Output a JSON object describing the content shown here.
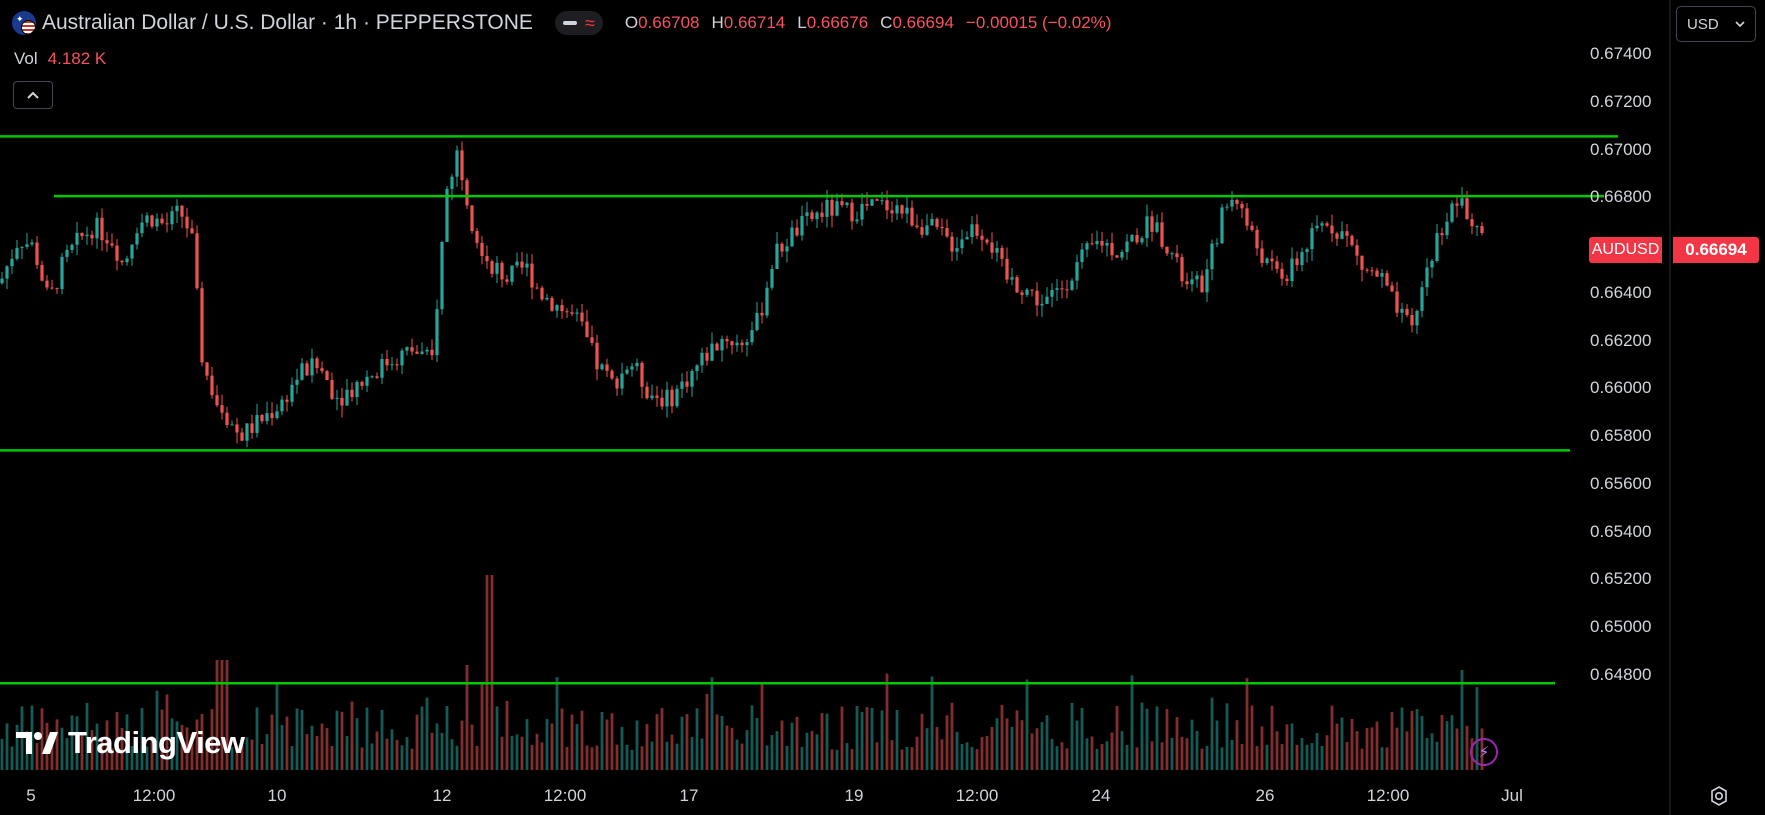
{
  "header": {
    "title": "Australian Dollar / U.S. Dollar · 1h · PEPPERSTONE",
    "ohlc": [
      {
        "k": "O",
        "v": "0.66708"
      },
      {
        "k": "H",
        "v": "0.66714"
      },
      {
        "k": "L",
        "v": "0.66676"
      },
      {
        "k": "C",
        "v": "0.66694"
      }
    ],
    "change": "−0.00015 (−0.02%)"
  },
  "volume": {
    "label": "Vol",
    "value": "4.182 K"
  },
  "currency_selector": {
    "value": "USD"
  },
  "last_price": {
    "symbol": "AUDUSD",
    "value": "0.66694"
  },
  "logo_text": "TradingView",
  "colors": {
    "up": "#26a69a",
    "down": "#ef5350",
    "level": "#00c800",
    "tag": "#f23645",
    "background": "#000000"
  },
  "chart_data": {
    "type": "candlestick",
    "symbol": "AUDUSD",
    "interval": "1h",
    "y_axis": {
      "ticks": [
        "0.67400",
        "0.67200",
        "0.67000",
        "0.66800",
        "0.66600",
        "0.66400",
        "0.66200",
        "0.66000",
        "0.65800",
        "0.65600",
        "0.65400",
        "0.65200",
        "0.65000",
        "0.64800"
      ],
      "range": [
        0.6475,
        0.675
      ]
    },
    "x_axis": {
      "ticks": [
        {
          "label": "5",
          "t": 0
        },
        {
          "label": "12:00",
          "t": 1
        },
        {
          "label": "10",
          "t": 2
        },
        {
          "label": "12",
          "t": 3
        },
        {
          "label": "12:00",
          "t": 4
        },
        {
          "label": "17",
          "t": 5
        },
        {
          "label": "19",
          "t": 6
        },
        {
          "label": "12:00",
          "t": 7
        },
        {
          "label": "24",
          "t": 8
        },
        {
          "label": "26",
          "t": 9
        },
        {
          "label": "12:00",
          "t": 10
        },
        {
          "label": "Jul",
          "t": 11
        }
      ]
    },
    "levels": [
      0.67055,
      0.66805,
      0.6574,
      0.64765
    ],
    "close_path": [
      [
        0.0,
        0.6644
      ],
      [
        0.5,
        0.6663
      ],
      [
        0.9,
        0.6659
      ],
      [
        1.3,
        0.6636
      ],
      [
        1.7,
        0.6653
      ],
      [
        2.1,
        0.6662
      ],
      [
        2.5,
        0.6668
      ],
      [
        3.0,
        0.6662
      ],
      [
        3.3,
        0.6651
      ],
      [
        3.6,
        0.6668
      ],
      [
        4.0,
        0.6672
      ],
      [
        4.4,
        0.6668
      ],
      [
        4.8,
        0.6674
      ],
      [
        5.1,
        0.6664
      ],
      [
        5.4,
        0.661
      ],
      [
        5.8,
        0.6593
      ],
      [
        6.4,
        0.658
      ],
      [
        6.9,
        0.6586
      ],
      [
        7.5,
        0.6594
      ],
      [
        8.0,
        0.6607
      ],
      [
        8.5,
        0.6609
      ],
      [
        9.0,
        0.6596
      ],
      [
        9.7,
        0.6604
      ],
      [
        10.4,
        0.6612
      ],
      [
        11.0,
        0.6616
      ],
      [
        11.5,
        0.6611
      ],
      [
        11.9,
        0.6683
      ],
      [
        12.2,
        0.67
      ],
      [
        12.6,
        0.6668
      ],
      [
        13.0,
        0.6654
      ],
      [
        13.5,
        0.6646
      ],
      [
        14.0,
        0.6651
      ],
      [
        14.4,
        0.664
      ],
      [
        14.9,
        0.6634
      ],
      [
        15.4,
        0.6628
      ],
      [
        15.9,
        0.661
      ],
      [
        16.3,
        0.6602
      ],
      [
        16.8,
        0.6611
      ],
      [
        17.3,
        0.6598
      ],
      [
        17.8,
        0.6595
      ],
      [
        18.3,
        0.6604
      ],
      [
        18.8,
        0.6614
      ],
      [
        19.3,
        0.6622
      ],
      [
        19.7,
        0.6618
      ],
      [
        20.2,
        0.6628
      ],
      [
        20.6,
        0.6655
      ],
      [
        21.0,
        0.6663
      ],
      [
        21.5,
        0.667
      ],
      [
        22.0,
        0.6675
      ],
      [
        22.6,
        0.6674
      ],
      [
        23.2,
        0.6676
      ],
      [
        23.8,
        0.6677
      ],
      [
        24.4,
        0.667
      ],
      [
        24.9,
        0.6666
      ],
      [
        25.4,
        0.666
      ],
      [
        25.9,
        0.6668
      ],
      [
        26.3,
        0.6664
      ],
      [
        26.8,
        0.6646
      ],
      [
        27.3,
        0.6642
      ],
      [
        27.8,
        0.6635
      ],
      [
        28.3,
        0.6643
      ],
      [
        28.8,
        0.6654
      ],
      [
        29.3,
        0.6662
      ],
      [
        29.8,
        0.6657
      ],
      [
        30.2,
        0.6663
      ],
      [
        30.7,
        0.667
      ],
      [
        31.1,
        0.666
      ],
      [
        31.6,
        0.6642
      ],
      [
        32.1,
        0.6644
      ],
      [
        32.5,
        0.6671
      ],
      [
        32.9,
        0.6682
      ],
      [
        33.3,
        0.6665
      ],
      [
        33.8,
        0.665
      ],
      [
        34.3,
        0.6647
      ],
      [
        34.8,
        0.666
      ],
      [
        35.3,
        0.667
      ],
      [
        35.8,
        0.6665
      ],
      [
        36.3,
        0.665
      ],
      [
        36.8,
        0.6646
      ],
      [
        37.2,
        0.6632
      ],
      [
        37.6,
        0.6624
      ],
      [
        38.0,
        0.665
      ],
      [
        38.4,
        0.6668
      ],
      [
        38.8,
        0.6678
      ],
      [
        39.2,
        0.6672
      ],
      [
        39.5,
        0.6669
      ]
    ],
    "volume_series": "hourly volume bars along the bottom, peak near the 12 spike"
  }
}
